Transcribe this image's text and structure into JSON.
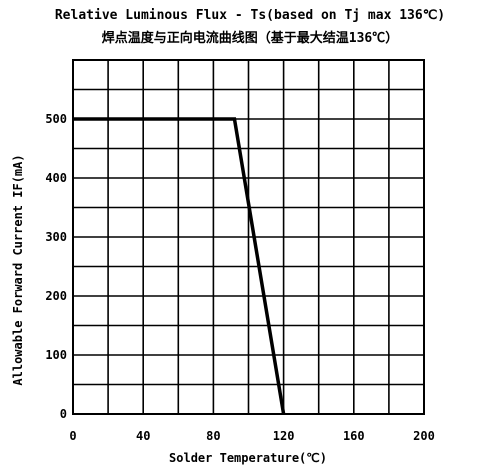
{
  "chart_data": {
    "type": "line",
    "title": "Relative Luminous Flux - Ts(based on Tj max 136℃)",
    "subtitle": "焊点温度与正向电流曲线图（基于最大结温136℃）",
    "xlabel": "Solder Temperature(℃)",
    "ylabel": "Allowable Forward Current IF(mA)",
    "xlim": [
      0,
      200
    ],
    "ylim": [
      0,
      600
    ],
    "x_ticks": [
      0,
      40,
      80,
      120,
      160,
      200
    ],
    "y_ticks": [
      0,
      100,
      200,
      300,
      400,
      500
    ],
    "x_grid_step": 20,
    "y_grid_step": 50,
    "grid": true,
    "line_color": "#000000",
    "series": [
      {
        "x": [
          0,
          92,
          120
        ],
        "y": [
          500,
          500,
          0
        ]
      }
    ]
  }
}
